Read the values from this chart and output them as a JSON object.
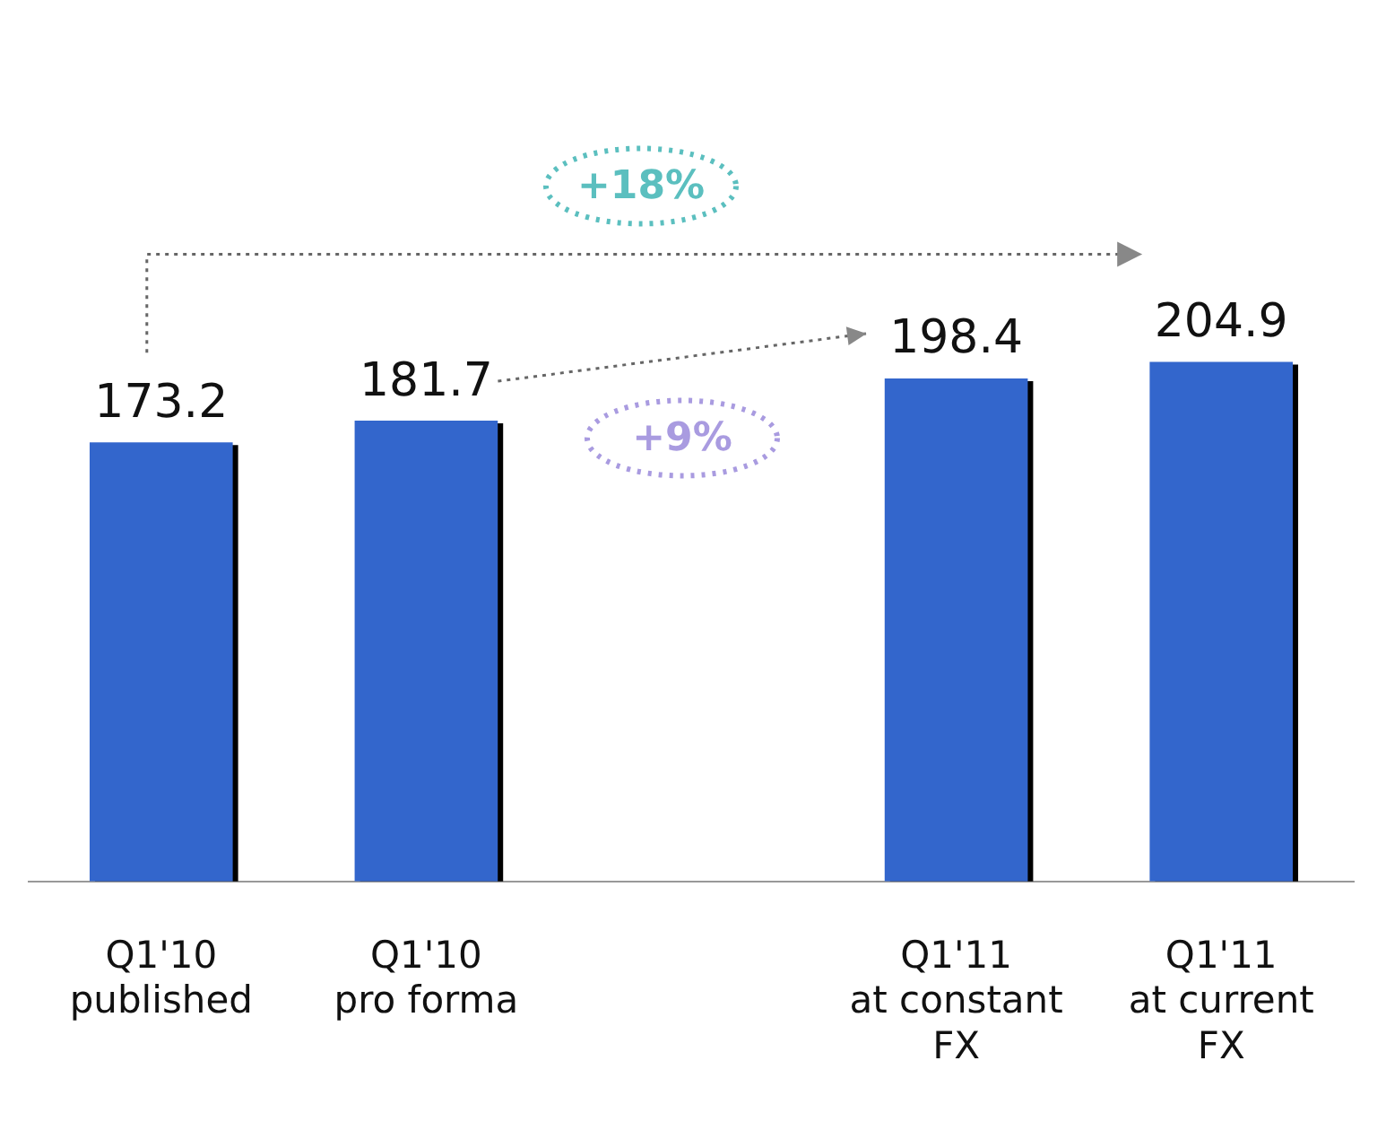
{
  "chart_data": {
    "type": "bar",
    "categories": [
      "Q1'10\npublished",
      "Q1'10\npro forma",
      null,
      "Q1'11\nat constant\nFX",
      "Q1'11\nat current\nFX"
    ],
    "values": [
      173.2,
      181.7,
      null,
      198.4,
      204.9
    ],
    "color": "#3366cc",
    "relative": false,
    "data_labels": true,
    "grid": false,
    "legend": false,
    "annotations": [
      "+18%",
      "+9%"
    ]
  }
}
